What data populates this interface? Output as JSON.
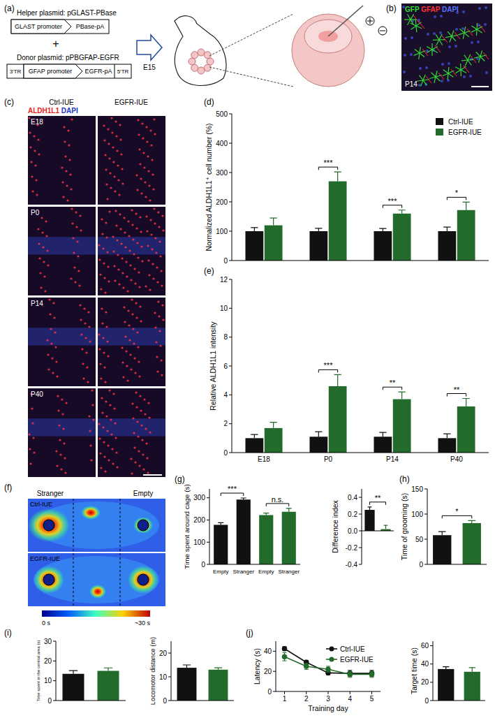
{
  "diagram": {
    "label": "(a)",
    "helper_title": "Helper plasmid: pGLAST-PBase",
    "helper_parts": [
      "GLAST promoter",
      "PBase-pA"
    ],
    "plus": "+",
    "donor_title": "Donor plasmid: pPBGFAP-EGFR",
    "donor_parts": [
      "3'TR",
      "GFAP promoter",
      "EGFR-pA",
      "5'TR"
    ],
    "stage": "E15"
  },
  "image_b": {
    "label": "(b)",
    "channels": [
      {
        "text": "GFP",
        "color": "#33dd33"
      },
      {
        "text": "GFAP",
        "color": "#ff3333"
      },
      {
        "text": "DAPI",
        "color": "#5577ff"
      }
    ],
    "timepoint": "P14"
  },
  "image_c": {
    "label": "(c)",
    "columns": [
      "Ctrl-IUE",
      "EGFR-IUE"
    ],
    "channels": [
      {
        "text": "ALDH1L1",
        "color": "#ee2222"
      },
      {
        "text": "DAPI",
        "color": "#2233cc"
      }
    ],
    "rows": [
      "E18",
      "P0",
      "P14",
      "P40"
    ]
  },
  "heatmap_f": {
    "label": "(f)",
    "left": "Stranger",
    "right": "Empty",
    "rows": [
      "Ctrl-IUE",
      "EGFR-IUE"
    ],
    "colorbar_min": "0 s",
    "colorbar_max": "~30 s"
  },
  "chart_data": [
    {
      "label": "(d)",
      "type": "bar",
      "ylabel": "Normalized ALDH1L1⁺ cell number (%)",
      "categories": [
        "E18",
        "P0",
        "P14",
        "P40"
      ],
      "series": [
        {
          "name": "Ctrl-IUE",
          "color": "#111111",
          "values": [
            100,
            100,
            100,
            100
          ],
          "errors": [
            12,
            10,
            9,
            14
          ]
        },
        {
          "name": "EGFR-IUE",
          "color": "#226b2a",
          "values": [
            120,
            270,
            160,
            172
          ],
          "errors": [
            25,
            32,
            12,
            27
          ]
        }
      ],
      "ylim": [
        0,
        500
      ],
      "yticks": [
        0,
        100,
        200,
        300,
        400,
        500
      ],
      "tick_labels": "y",
      "legend": "top-right",
      "significance": [
        {
          "category": "P0",
          "label": "***"
        },
        {
          "category": "P14",
          "label": "***"
        },
        {
          "category": "P40",
          "label": "*"
        }
      ]
    },
    {
      "label": "(e)",
      "type": "bar",
      "ylabel": "Relative ALDH1L1 intensity",
      "categories": [
        "E18",
        "P0",
        "P14",
        "P40"
      ],
      "series": [
        {
          "name": "Ctrl-IUE",
          "color": "#111111",
          "values": [
            1.0,
            1.1,
            1.1,
            1.0
          ],
          "errors": [
            0.25,
            0.35,
            0.3,
            0.3
          ]
        },
        {
          "name": "EGFR-IUE",
          "color": "#226b2a",
          "values": [
            1.7,
            4.6,
            3.7,
            3.2
          ],
          "errors": [
            0.4,
            0.8,
            0.5,
            0.55
          ]
        }
      ],
      "ylim": [
        0,
        12
      ],
      "yticks": [
        0,
        2,
        4,
        6,
        8,
        10,
        12
      ],
      "significance": [
        {
          "category": "P0",
          "label": "***"
        },
        {
          "category": "P14",
          "label": "**"
        },
        {
          "category": "P40",
          "label": "**"
        }
      ]
    },
    {
      "label": "(g)",
      "type": "bar",
      "ylabel": "Time spent around cage (s)",
      "categories": [
        "Empty",
        "Stranger",
        "Empty",
        "Stranger"
      ],
      "values": [
        178,
        292,
        222,
        237
      ],
      "errors": [
        10,
        7,
        9,
        15
      ],
      "colors": [
        "#111111",
        "#111111",
        "#226b2a",
        "#226b2a"
      ],
      "ylim": [
        0,
        340
      ],
      "yticks": [
        0,
        100,
        200,
        300
      ],
      "significance": [
        {
          "between": [
            0,
            1
          ],
          "label": "***"
        },
        {
          "between": [
            2,
            3
          ],
          "label": "n.s."
        }
      ]
    },
    {
      "type": "bar",
      "ylabel": "Difference index",
      "categories": [
        null,
        null
      ],
      "values": [
        0.25,
        0.02
      ],
      "errors": [
        0.035,
        0.045
      ],
      "colors": [
        "#111111",
        "#226b2a"
      ],
      "ylim": [
        -0.4,
        0.5
      ],
      "yticks": [
        -0.4,
        -0.2,
        {
          "value": 0,
          "label": "0.0"
        },
        0.2,
        0.4
      ],
      "tick_labels": "y",
      "significance": [
        {
          "between": [
            0,
            1
          ],
          "label": "**"
        }
      ]
    },
    {
      "label": "(h)",
      "type": "bar",
      "ylabel": "Time of grooming (s)",
      "categories": [
        null,
        null
      ],
      "values": [
        58,
        82
      ],
      "errors": [
        7,
        5
      ],
      "colors": [
        "#111111",
        "#226b2a"
      ],
      "ylim": [
        0,
        150
      ],
      "yticks": [
        0,
        50,
        100,
        150
      ],
      "tick_labels": "y",
      "significance": [
        {
          "between": [
            0,
            1
          ],
          "label": "*"
        }
      ]
    },
    {
      "label": "(i)",
      "type": "bar",
      "ylabel": "Time spent in the central area (s)",
      "categories": [
        null,
        null
      ],
      "values": [
        13.5,
        15
      ],
      "errors": [
        1.6,
        1.5
      ],
      "colors": [
        "#111111",
        "#226b2a"
      ],
      "ylim": [
        0,
        30
      ],
      "yticks": [
        0,
        10,
        20,
        30
      ],
      "tick_labels": "y"
    },
    {
      "type": "bar",
      "ylabel": "Locomotor distance (m)",
      "categories": [
        null,
        null
      ],
      "values": [
        13.8,
        13
      ],
      "errors": [
        1.2,
        0.8
      ],
      "colors": [
        "#111111",
        "#226b2a"
      ],
      "ylim": [
        0,
        25
      ],
      "yticks": [
        0,
        10,
        20
      ],
      "tick_labels": "y"
    },
    {
      "label": "(j)",
      "type": "line",
      "ylabel": "Latency (s)",
      "xlabel": "Training day",
      "x": [
        1,
        2,
        3,
        4,
        5
      ],
      "series": [
        {
          "name": "Ctrl-IUE",
          "color": "#111111",
          "marker": "circle",
          "values": [
            42.5,
            29,
            18.5,
            18,
            18
          ],
          "errors": [
            2,
            2,
            2,
            3,
            3
          ]
        },
        {
          "name": "EGFR-IUE",
          "color": "#226b2a",
          "marker": "circle",
          "values": [
            34.5,
            25,
            22,
            17,
            17
          ],
          "errors": [
            4,
            3,
            3,
            3,
            3
          ]
        }
      ],
      "xlim": [
        0.6,
        5.4
      ],
      "xticks": [
        1,
        2,
        3,
        4,
        5
      ],
      "ylim": [
        0,
        50
      ],
      "yticks": [
        0,
        20,
        40
      ],
      "legend": "top-right"
    },
    {
      "type": "bar",
      "ylabel": "Target time (s)",
      "categories": [
        null,
        null
      ],
      "values": [
        34.5,
        31.5
      ],
      "errors": [
        2.5,
        4.5
      ],
      "colors": [
        "#111111",
        "#226b2a"
      ],
      "ylim": [
        0,
        65
      ],
      "yticks": [
        0,
        20,
        40,
        60
      ],
      "tick_labels": "y"
    }
  ]
}
